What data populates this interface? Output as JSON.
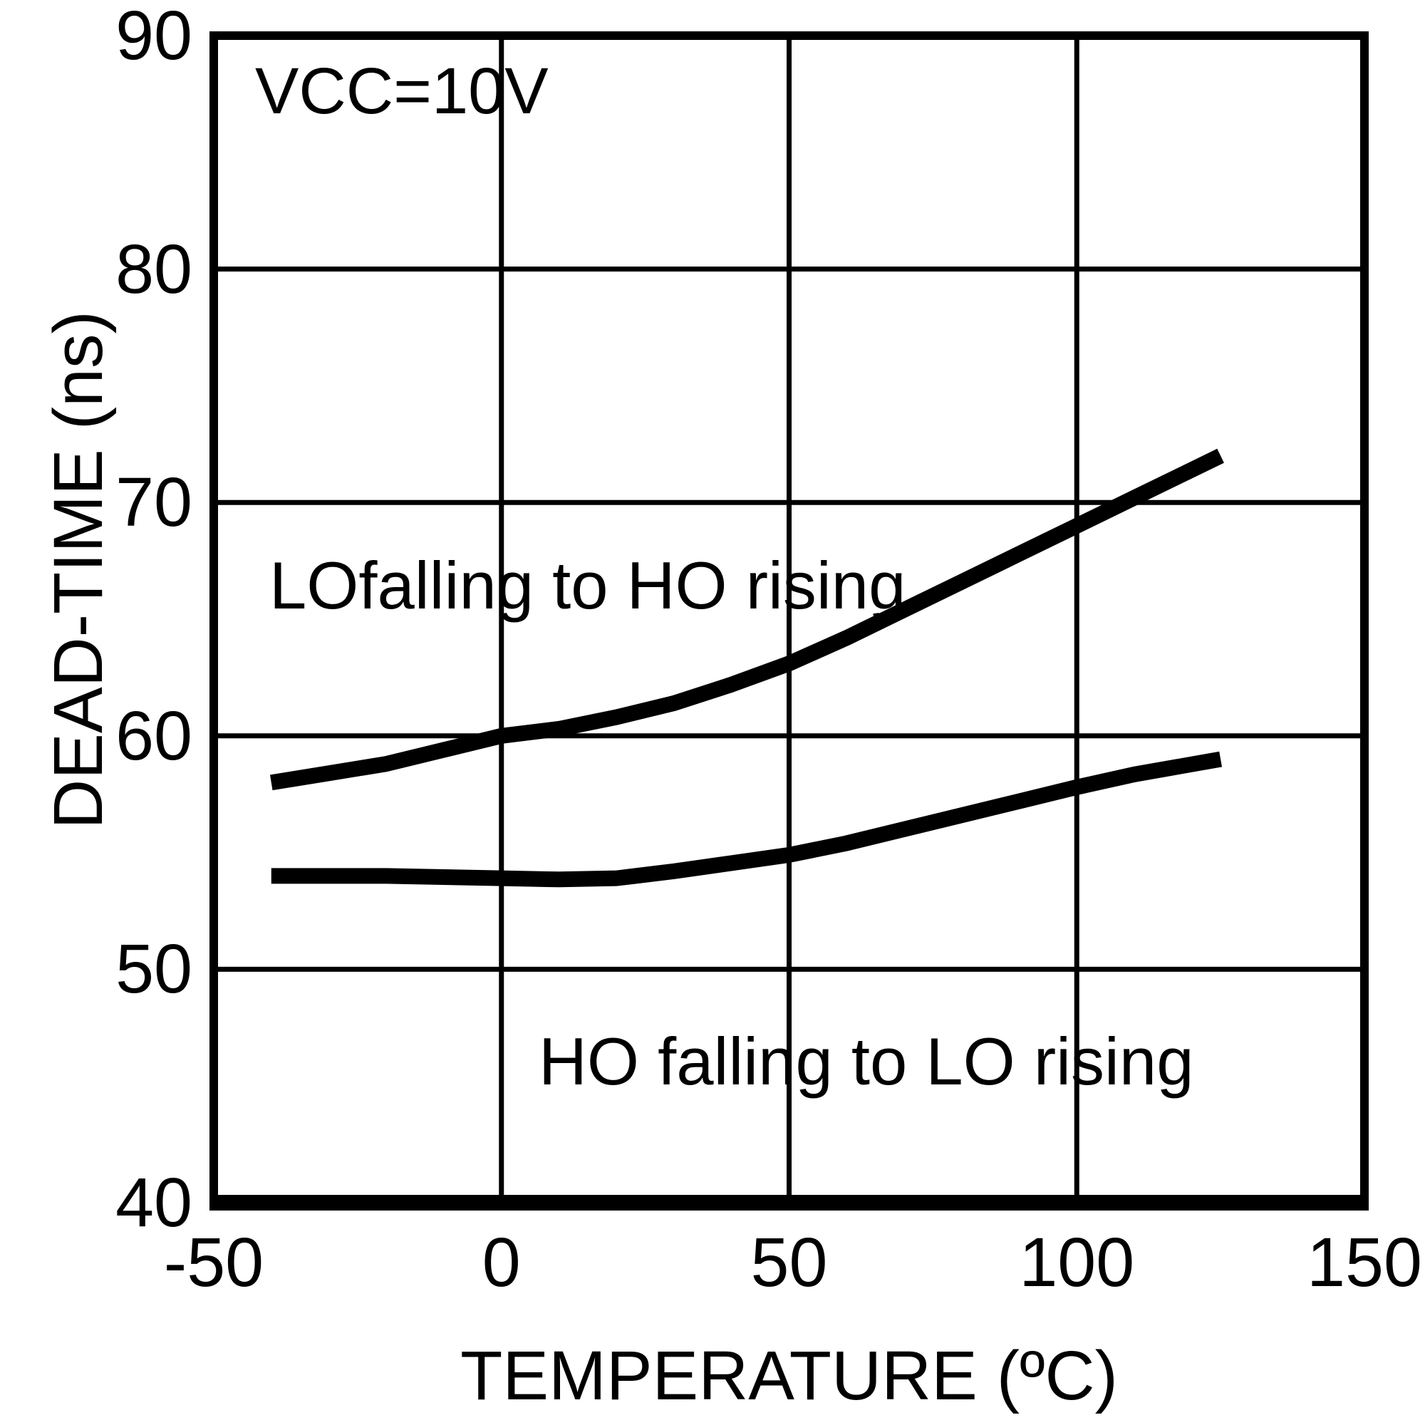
{
  "figure": {
    "background": "#ffffff",
    "foreground": "#000000"
  },
  "chart_data": {
    "type": "line",
    "title": "",
    "annotation": "VCC=10V",
    "xlabel": "TEMPERATURE (ºC)",
    "ylabel": "DEAD-TIME (ns)",
    "xlim": [
      -50,
      150
    ],
    "ylim": [
      40,
      90
    ],
    "xticks": [
      -50,
      0,
      50,
      100,
      150
    ],
    "yticks": [
      90,
      80,
      70,
      60,
      50,
      40
    ],
    "grid": true,
    "legend_position": "inline-curve-labels",
    "line_color": "#000000",
    "series": [
      {
        "name": "LOfalling to HO rising",
        "x": [
          -40,
          -30,
          -20,
          -10,
          0,
          10,
          20,
          30,
          40,
          50,
          60,
          70,
          80,
          90,
          100,
          110,
          125
        ],
        "y": [
          58,
          58.4,
          58.8,
          59.4,
          60,
          60.3,
          60.8,
          61.4,
          62.2,
          63.1,
          64.2,
          65.4,
          66.6,
          67.8,
          69,
          70.2,
          72
        ]
      },
      {
        "name": "HO falling to LO rising",
        "x": [
          -40,
          -30,
          -20,
          -10,
          0,
          10,
          20,
          30,
          40,
          50,
          60,
          70,
          80,
          90,
          100,
          110,
          125
        ],
        "y": [
          54,
          54,
          54,
          53.95,
          53.9,
          53.85,
          53.9,
          54.2,
          54.55,
          54.9,
          55.4,
          56,
          56.6,
          57.2,
          57.8,
          58.35,
          59
        ]
      }
    ]
  }
}
